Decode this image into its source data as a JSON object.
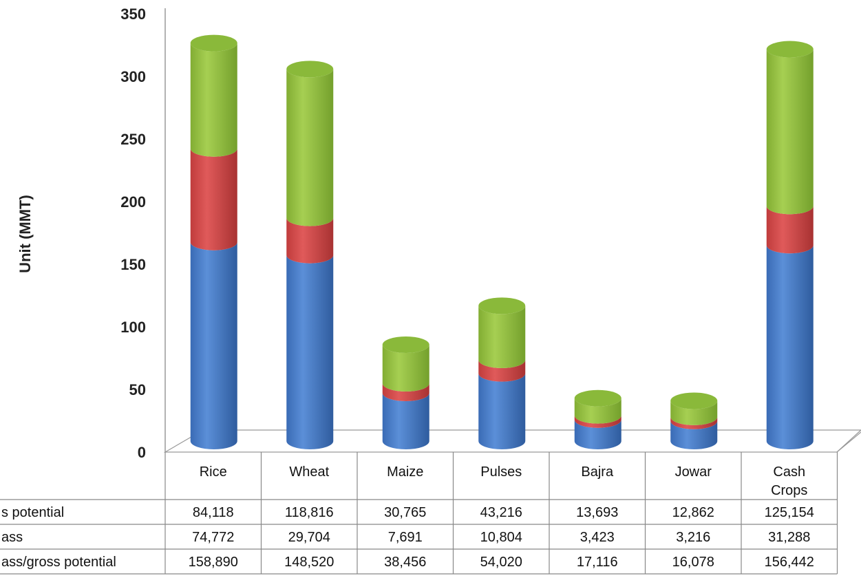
{
  "chart_data": {
    "type": "bar",
    "stacked": true,
    "ylabel": "Unit (MMT)",
    "ylim": [
      0,
      350
    ],
    "yticks": [
      "0",
      "50",
      "100",
      "150",
      "200",
      "250",
      "300",
      "350"
    ],
    "categories": [
      "Rice",
      "Wheat",
      "Maize",
      "Pulses",
      "Bajra",
      "Jowar",
      "Cash\nCrops"
    ],
    "colors": [
      "#4a7ec9",
      "#d24b4b",
      "#92bd3f"
    ],
    "series": [
      {
        "name": "s potential",
        "values": [
          "84,118",
          "118,816",
          "30,765",
          "43,216",
          "13,693",
          "12,862",
          "125,154"
        ],
        "numeric": [
          84118,
          118816,
          30765,
          43216,
          13693,
          12862,
          125154
        ]
      },
      {
        "name": "ass",
        "values": [
          "74,772",
          "29,704",
          "7,691",
          "10,804",
          "3,423",
          "3,216",
          "31,288"
        ],
        "numeric": [
          74772,
          29704,
          7691,
          10804,
          3423,
          3216,
          31288
        ]
      },
      {
        "name": "ass/gross potential",
        "values": [
          "158,890",
          "148,520",
          "38,456",
          "54,020",
          "17,116",
          "16,078",
          "156,442"
        ],
        "numeric": [
          158890,
          148520,
          38456,
          54020,
          17116,
          16078,
          156442
        ]
      }
    ],
    "grid": false
  }
}
